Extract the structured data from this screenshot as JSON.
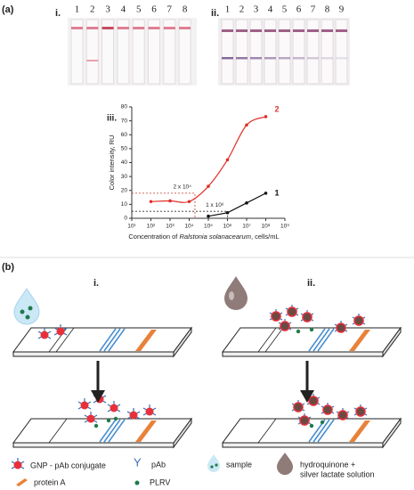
{
  "panel_a": {
    "label": "(a)",
    "i": {
      "label": "i.",
      "lanes": [
        "1",
        "2",
        "3",
        "4",
        "5",
        "6",
        "7",
        "8"
      ]
    },
    "ii": {
      "label": "ii.",
      "lanes": [
        "1",
        "2",
        "3",
        "4",
        "5",
        "6",
        "7",
        "8",
        "9"
      ]
    },
    "iii_label": "iii."
  },
  "chart_data": {
    "type": "line",
    "x_scale": "log",
    "y_label": "Color intensity, RU",
    "x_label": [
      "Concentration of ",
      "Ralstonia solanacearum",
      ", cells/mL"
    ],
    "xlim": [
      10,
      1000000000
    ],
    "xticks": [
      {
        "value": 10,
        "label": "10¹"
      },
      {
        "value": 100,
        "label": "10²"
      },
      {
        "value": 1000,
        "label": "10³"
      },
      {
        "value": 10000,
        "label": "10⁴"
      },
      {
        "value": 100000,
        "label": "10⁵"
      },
      {
        "value": 1000000,
        "label": "10⁶"
      },
      {
        "value": 10000000,
        "label": "10⁷"
      },
      {
        "value": 100000000,
        "label": "10⁸"
      },
      {
        "value": 1000000000,
        "label": "10⁹"
      }
    ],
    "ylim": [
      0,
      80
    ],
    "yticks": [
      0,
      10,
      20,
      30,
      40,
      50,
      60,
      70,
      80
    ],
    "series": [
      {
        "name": "2",
        "color": "#e0302a",
        "x": [
          100,
          1000,
          10000,
          100000,
          1000000,
          10000000,
          100000000
        ],
        "values": [
          12,
          12.5,
          12,
          23,
          42,
          67,
          73
        ]
      },
      {
        "name": "1",
        "color": "#111111",
        "x": [
          100000,
          1000000,
          10000000,
          100000000
        ],
        "values": [
          1.5,
          4,
          11,
          18
        ]
      }
    ],
    "thresholds": [
      {
        "x": 20000,
        "y": 18,
        "label": "2 x 10⁴",
        "color": "#c0392b"
      },
      {
        "x": 1000000,
        "y": 5,
        "label": "1 x 10⁶",
        "color": "#333333"
      }
    ]
  },
  "panel_b": {
    "label": "(b)",
    "i": "i.",
    "ii": "ii."
  },
  "legend": {
    "gnp": "GNP - pAb conjugate",
    "pab": "pAb",
    "sample": "sample",
    "solution": [
      "hydroquinone +",
      "silver lactate solution"
    ],
    "protein_a": "protein A",
    "plrv": "PLRV"
  }
}
